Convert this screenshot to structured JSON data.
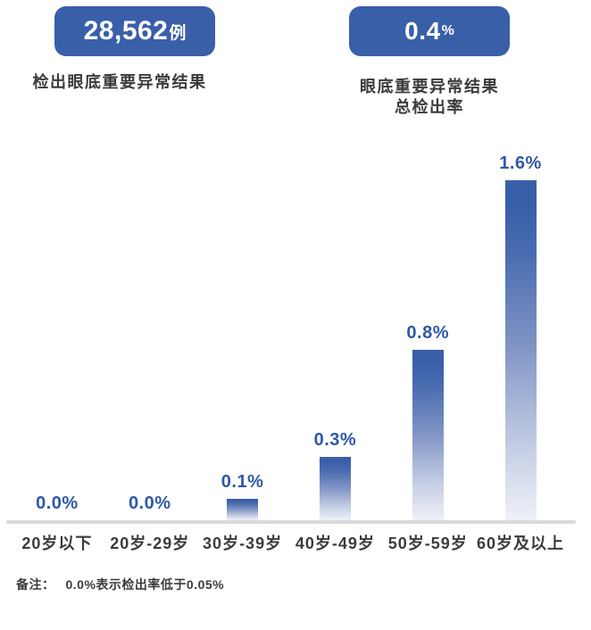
{
  "stats": [
    {
      "value": "28,562",
      "unit": "例",
      "label": "检出眼底重要异常结果"
    },
    {
      "value": "0.4",
      "unit": "%",
      "label_line1": "眼底重要异常结果",
      "label_line2": "总检出率"
    }
  ],
  "chart_data": {
    "type": "bar",
    "title": "",
    "xlabel": "",
    "ylabel": "",
    "categories": [
      "20岁以下",
      "20岁-29岁",
      "30岁-39岁",
      "40岁-49岁",
      "50岁-59岁",
      "60岁及以上"
    ],
    "values": [
      0.0,
      0.0,
      0.1,
      0.3,
      0.8,
      1.6
    ],
    "value_labels": [
      "0.0%",
      "0.0%",
      "0.1%",
      "0.3%",
      "0.8%",
      "1.6%"
    ],
    "ylim": [
      0,
      1.6
    ],
    "grid": false,
    "legend": "none",
    "bar_gradient": [
      "#3A5FA9 0%",
      "#3A5FA9 8%",
      "#4A6DB0 22%",
      "#8396C6 50%",
      "#C3CDE3 78%",
      "#EEF1F8 100%"
    ]
  },
  "note": {
    "prefix": "备注：",
    "body": "0.0%表示检出率低于0.05%"
  },
  "colors": {
    "badge_blue": "#3A5FA9",
    "value_label_blue": "#2D59A7",
    "text_dark": "#3B3B3B",
    "axis_gray": "#DADADA",
    "background": "#FFFFFF"
  }
}
